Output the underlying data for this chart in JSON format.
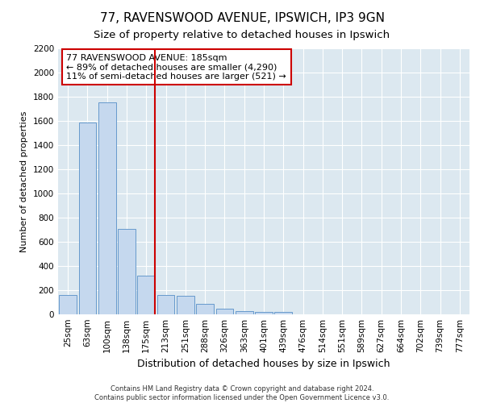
{
  "title1": "77, RAVENSWOOD AVENUE, IPSWICH, IP3 9GN",
  "title2": "Size of property relative to detached houses in Ipswich",
  "xlabel": "Distribution of detached houses by size in Ipswich",
  "ylabel": "Number of detached properties",
  "footnote1": "Contains HM Land Registry data © Crown copyright and database right 2024.",
  "footnote2": "Contains public sector information licensed under the Open Government Licence v3.0.",
  "categories": [
    "25sqm",
    "63sqm",
    "100sqm",
    "138sqm",
    "175sqm",
    "213sqm",
    "251sqm",
    "288sqm",
    "326sqm",
    "363sqm",
    "401sqm",
    "439sqm",
    "476sqm",
    "514sqm",
    "551sqm",
    "589sqm",
    "627sqm",
    "664sqm",
    "702sqm",
    "739sqm",
    "777sqm"
  ],
  "values": [
    160,
    1590,
    1755,
    710,
    320,
    160,
    155,
    90,
    50,
    30,
    20,
    20,
    0,
    0,
    0,
    0,
    0,
    0,
    0,
    0,
    0
  ],
  "bar_color": "#c5d8ee",
  "bar_edge_color": "#6699cc",
  "vline_color": "#cc0000",
  "vline_x_index": 4,
  "annotation_line1": "77 RAVENSWOOD AVENUE: 185sqm",
  "annotation_line2": "← 89% of detached houses are smaller (4,290)",
  "annotation_line3": "11% of semi-detached houses are larger (521) →",
  "annotation_box_color": "#cc0000",
  "ylim": [
    0,
    2200
  ],
  "yticks": [
    0,
    200,
    400,
    600,
    800,
    1000,
    1200,
    1400,
    1600,
    1800,
    2000,
    2200
  ],
  "fig_bg": "#ffffff",
  "plot_bg": "#dce8f0",
  "grid_color": "#ffffff",
  "title1_fontsize": 11,
  "title2_fontsize": 9.5,
  "xlabel_fontsize": 9,
  "ylabel_fontsize": 8,
  "tick_fontsize": 7.5,
  "annotation_fontsize": 8,
  "footnote_fontsize": 6
}
